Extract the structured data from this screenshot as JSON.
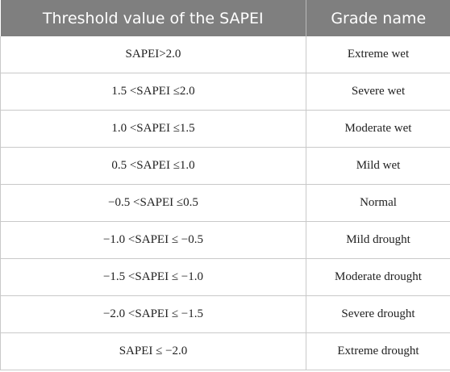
{
  "table": {
    "headers": [
      "Threshold value of the SAPEI",
      "Grade name"
    ],
    "rows": [
      [
        "SAPEI>2.0",
        "Extreme wet"
      ],
      [
        "1.5 <SAPEI ≤2.0",
        "Severe wet"
      ],
      [
        "1.0 <SAPEI ≤1.5",
        "Moderate wet"
      ],
      [
        "0.5 <SAPEI ≤1.0",
        "Mild wet"
      ],
      [
        "−0.5 <SAPEI ≤0.5",
        "Normal"
      ],
      [
        "−1.0 <SAPEI ≤ −0.5",
        "Mild drought"
      ],
      [
        "−1.5 <SAPEI ≤ −1.0",
        "Moderate drought"
      ],
      [
        "−2.0 <SAPEI ≤ −1.5",
        "Severe drought"
      ],
      [
        "SAPEI ≤ −2.0",
        "Extreme drought"
      ]
    ]
  },
  "colors": {
    "header_bg": "#7f7f7f",
    "header_text": "#ffffff",
    "border": "#c9c9c9"
  }
}
